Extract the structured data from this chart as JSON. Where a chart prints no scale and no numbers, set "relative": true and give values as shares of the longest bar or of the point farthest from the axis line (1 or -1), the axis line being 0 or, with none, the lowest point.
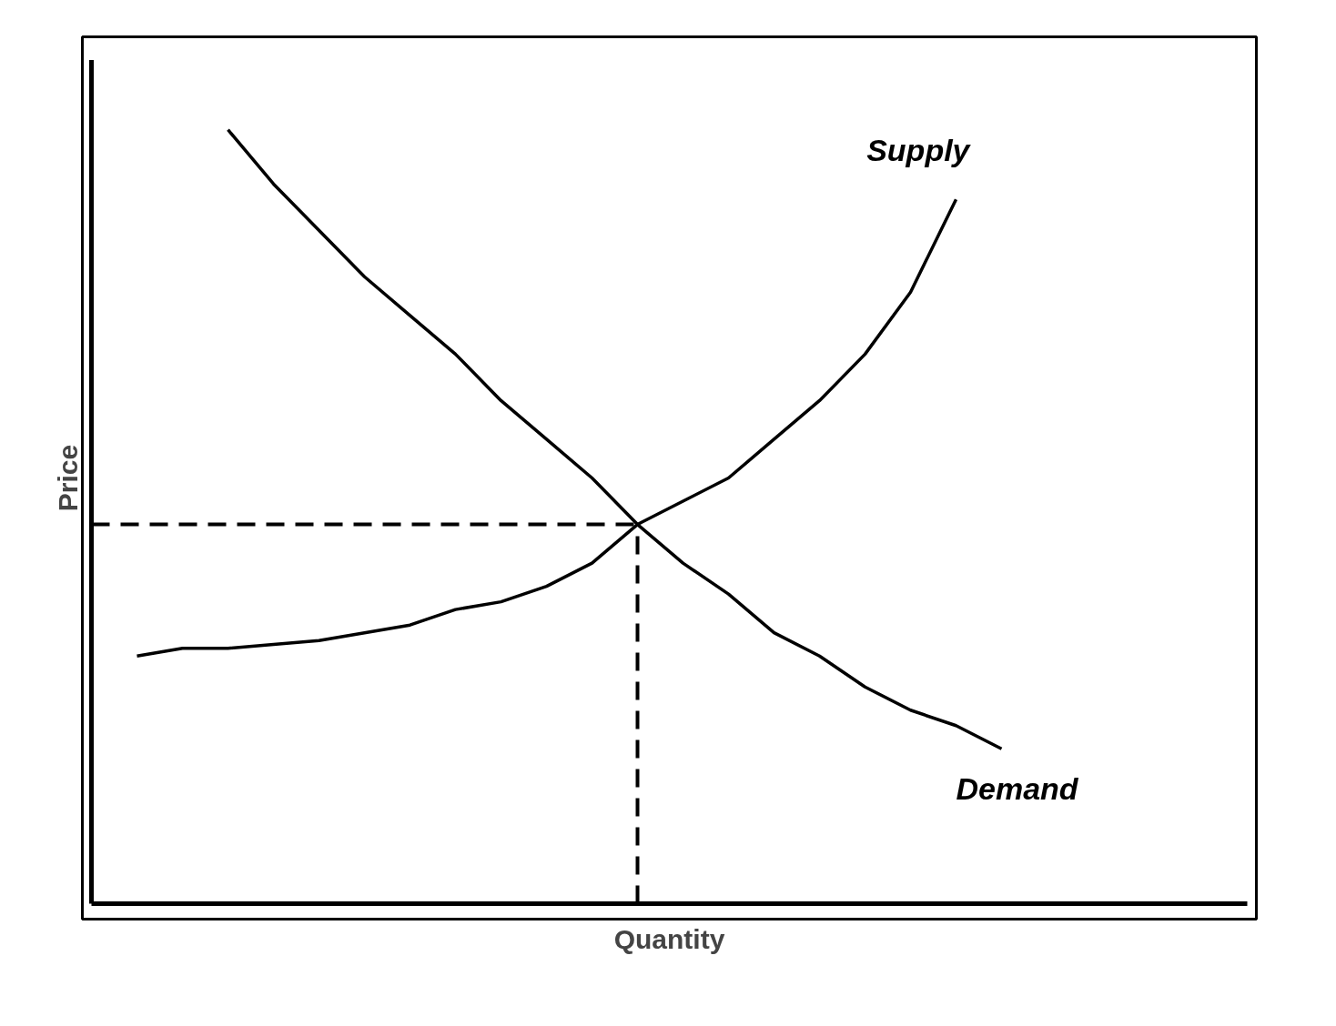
{
  "chart_data": {
    "type": "line",
    "relative": true,
    "xlabel": "Quantity",
    "ylabel": "Price",
    "tick_labels": false,
    "categories": [
      null,
      null,
      null,
      null,
      null,
      null,
      null,
      null,
      null,
      null,
      null,
      null,
      null,
      null,
      null,
      null,
      null,
      null,
      null,
      null,
      null,
      null,
      null,
      null,
      null,
      null
    ],
    "series": [
      {
        "name": "Supply",
        "color": "#000000",
        "values": [
          null,
          0.32,
          0.33,
          0.33,
          0.335,
          0.34,
          0.35,
          0.36,
          0.38,
          0.39,
          0.41,
          0.44,
          0.49,
          0.52,
          0.55,
          0.6,
          0.65,
          0.71,
          0.79,
          0.91,
          null,
          null,
          null,
          null,
          null,
          null
        ]
      },
      {
        "name": "Demand",
        "color": "#000000",
        "values": [
          null,
          null,
          null,
          1.0,
          0.93,
          0.87,
          0.81,
          0.76,
          0.71,
          0.65,
          0.6,
          0.55,
          0.49,
          0.44,
          0.4,
          0.35,
          0.32,
          0.28,
          0.25,
          0.23,
          0.2,
          null,
          null,
          null,
          null,
          null
        ]
      }
    ],
    "ref_lines": [
      {
        "axis": "y",
        "value": 0.49,
        "color": "#000000",
        "line_style": "dashed"
      }
    ]
  }
}
